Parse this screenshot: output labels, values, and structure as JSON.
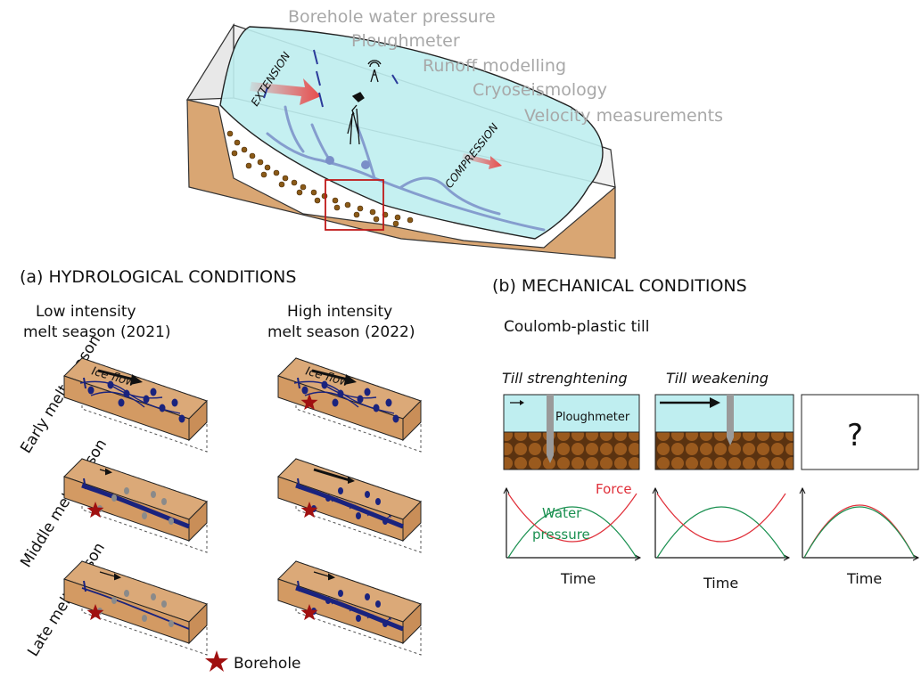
{
  "measurements": [
    "Borehole water pressure",
    "Ploughmeter",
    "Runoff modelling",
    "Cryoseismology",
    "Velocity measurements"
  ],
  "glacier_labels": {
    "extension": "EXTENSION",
    "compression": "COMPRESSION"
  },
  "panel_a": {
    "title": "(a) HYDROLOGICAL CONDITIONS",
    "low_title_1": "Low intensity",
    "low_title_2": "melt season (2021)",
    "high_title_1": "High intensity",
    "high_title_2": "melt season (2022)",
    "rows": [
      "Early melt-season",
      "Middle melt-season",
      "Late melt-season"
    ],
    "ice_flow": "Ice flow",
    "legend": "Borehole"
  },
  "panel_b": {
    "title": "(b) MECHANICAL CONDITIONS",
    "subtitle": "Coulomb-plastic till",
    "col1": "Till strenghtening",
    "col2": "Till weakening",
    "ploughmeter": "Ploughmeter",
    "unknown": "?",
    "force": "Force",
    "water_1": "Water",
    "water_2": "pressure",
    "time": "Time"
  },
  "colors": {
    "ice": "#bfeef0",
    "bed": "#dba978",
    "channel": "#1a237e",
    "star": "#a01010",
    "force": "#e0303a",
    "water": "#1a9050",
    "red_arrow": "#e84a4a"
  }
}
